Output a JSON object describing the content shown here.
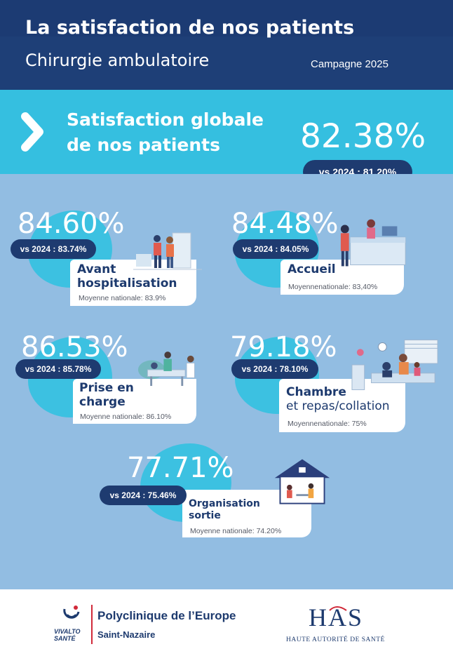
{
  "header": {
    "title": "La satisfaction de nos patients",
    "subtitle": "Chirurgie ambulatoire",
    "campaign": "Campagne 2025"
  },
  "global": {
    "label": "Satisfaction globale de nos patients",
    "value": "82.38%",
    "vs": "vs 2024 : 81.20%"
  },
  "metrics": [
    {
      "value": "84.60%",
      "vs": "vs 2024 : 83.74%",
      "title": "Avant hospitalisation",
      "national": "Moyenne nationale: 83.9%"
    },
    {
      "value": "84.48%",
      "vs": "vs 2024 : 84.05%",
      "title": "Accueil",
      "national": "Moyennenationale: 83,40%"
    },
    {
      "value": "86.53%",
      "vs": "vs 2024 : 85.78%",
      "title": "Prise en charge",
      "national": "Moyenne nationale: 86.10%"
    },
    {
      "value": "79.18%",
      "vs": "vs 2024 : 78.10%",
      "title_bold": "Chambre",
      "title_plain": "et repas/collation",
      "national": "Moyennenationale: 75%"
    },
    {
      "value": "77.71%",
      "vs": "vs 2024 : 75.46%",
      "title": "Organisation sortie",
      "national": "Moyenne nationale: 74.20%"
    }
  ],
  "footer": {
    "group_logo_text": "VIVALTO SANTÉ",
    "clinic_name": "Polyclinique de l’Europe",
    "clinic_city": "Saint-Nazaire",
    "has_logo": "HAS",
    "has_full": "HAUTE AUTORITÉ DE SANTÉ"
  },
  "colors": {
    "navy": "#1c3b73",
    "cyan": "#35bfe0",
    "body_blue": "#92bde2",
    "pill": "#1e3b70"
  },
  "icons": [
    "chevron-right-icon",
    "vivalto-logo",
    "has-logo"
  ]
}
